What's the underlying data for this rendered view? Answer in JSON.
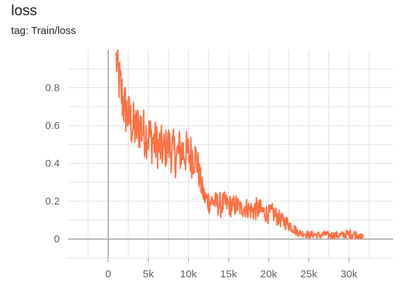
{
  "card": {
    "title": "loss",
    "subtitle": "tag: Train/loss"
  },
  "colors": {
    "series": "#ff7043",
    "grid": "#e0e0e0",
    "axis": "#9e9e9e",
    "text": "#616161"
  },
  "chart_data": {
    "type": "line",
    "title": "loss",
    "subtitle": "tag: Train/loss",
    "xlabel": "",
    "ylabel": "",
    "xlim": [
      -5000,
      35500
    ],
    "ylim": [
      -0.1,
      1.0
    ],
    "x_ticks": [
      0,
      5000,
      10000,
      15000,
      20000,
      25000,
      30000
    ],
    "x_tick_labels": [
      "0",
      "5k",
      "10k",
      "15k",
      "20k",
      "25k",
      "30k"
    ],
    "y_ticks": [
      0,
      0.2,
      0.4,
      0.6,
      0.8
    ],
    "y_tick_labels": [
      "0",
      "0.2",
      "0.4",
      "0.6",
      "0.8"
    ],
    "grid": true,
    "legend": "none",
    "series": [
      {
        "x": [
          1000,
          1500,
          2000,
          2500,
          3000,
          3500,
          4000,
          4500,
          5000,
          5500,
          6000,
          6500,
          7000,
          7500,
          8000,
          8500,
          9000,
          9500,
          10000,
          10500,
          11000,
          11500,
          12000,
          12500,
          13000,
          13500,
          14000,
          14500,
          15000,
          15500,
          16000,
          16500,
          17000,
          17500,
          18000,
          18500,
          19000,
          19500,
          20000,
          20500,
          21000,
          21500,
          22000,
          22500,
          23000,
          23500,
          24000,
          24500,
          25000,
          25500,
          26000,
          26500,
          27000,
          27500,
          28000,
          28500,
          29000,
          29500,
          30000,
          30500,
          31000,
          31500
        ],
        "y": [
          0.95,
          0.8,
          0.7,
          0.65,
          0.6,
          0.58,
          0.6,
          0.56,
          0.55,
          0.52,
          0.5,
          0.48,
          0.47,
          0.5,
          0.46,
          0.44,
          0.47,
          0.46,
          0.45,
          0.44,
          0.43,
          0.3,
          0.22,
          0.2,
          0.2,
          0.19,
          0.18,
          0.19,
          0.18,
          0.17,
          0.18,
          0.16,
          0.17,
          0.16,
          0.15,
          0.16,
          0.15,
          0.14,
          0.13,
          0.14,
          0.12,
          0.1,
          0.09,
          0.08,
          0.06,
          0.04,
          0.03,
          0.03,
          0.02,
          0.025,
          0.02,
          0.02,
          0.025,
          0.02,
          0.02,
          0.02,
          0.02,
          0.025,
          0.025,
          0.03,
          0.02,
          0.015
        ],
        "noise": [
          0.12,
          0.15,
          0.15,
          0.13,
          0.14,
          0.13,
          0.14,
          0.13,
          0.13,
          0.13,
          0.12,
          0.13,
          0.11,
          0.11,
          0.13,
          0.12,
          0.13,
          0.12,
          0.12,
          0.12,
          0.1,
          0.08,
          0.06,
          0.07,
          0.06,
          0.06,
          0.07,
          0.06,
          0.06,
          0.06,
          0.06,
          0.05,
          0.06,
          0.05,
          0.06,
          0.06,
          0.06,
          0.05,
          0.05,
          0.05,
          0.05,
          0.04,
          0.04,
          0.04,
          0.03,
          0.025,
          0.02,
          0.02,
          0.02,
          0.02,
          0.02,
          0.02,
          0.02,
          0.02,
          0.02,
          0.02,
          0.02,
          0.025,
          0.025,
          0.03,
          0.02,
          0.01
        ]
      }
    ]
  }
}
